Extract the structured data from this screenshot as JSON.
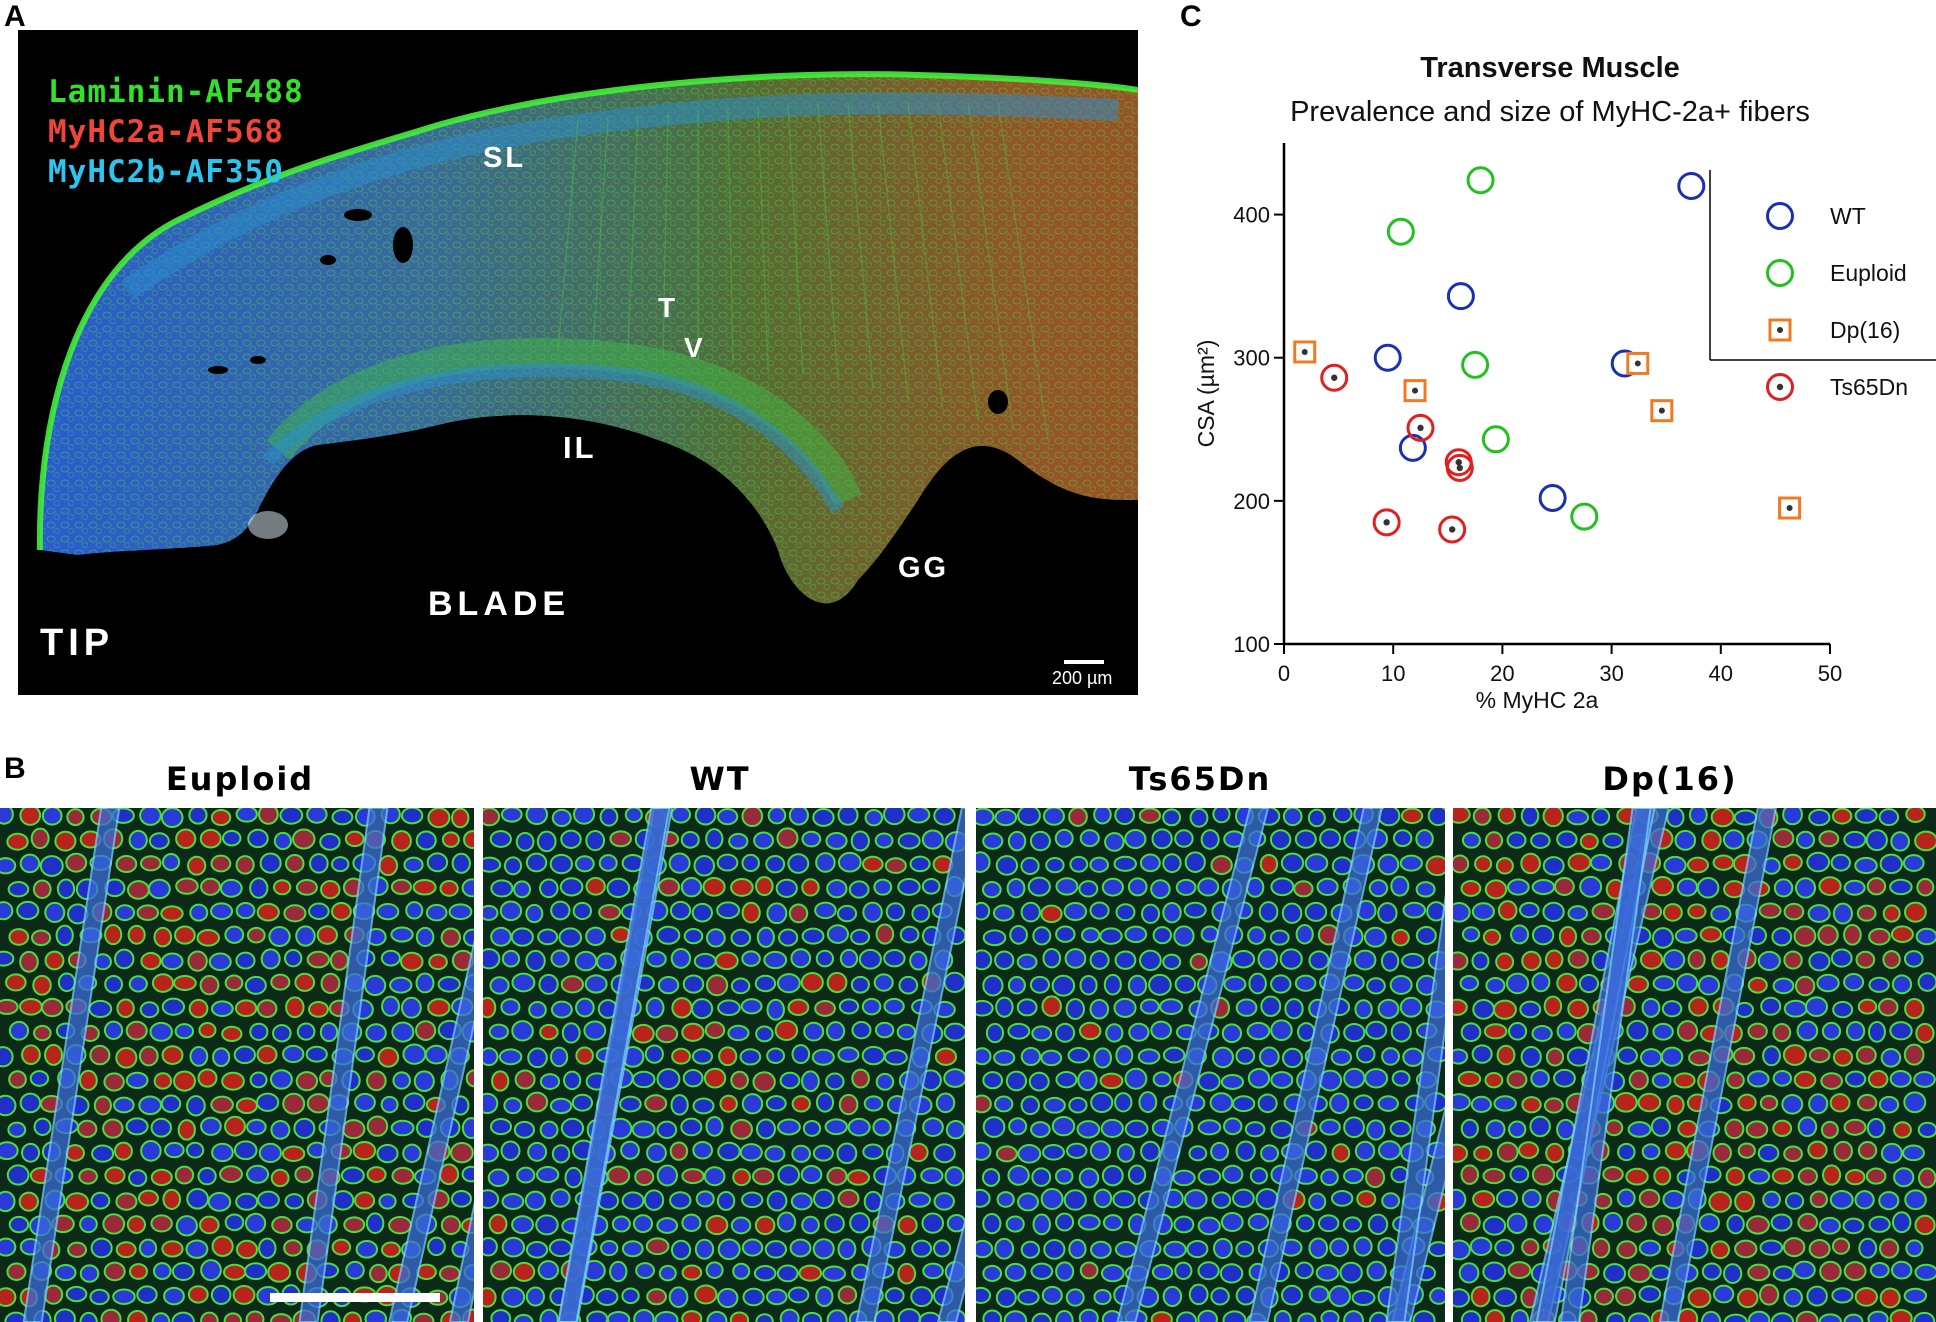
{
  "panels": {
    "a": "A",
    "b": "B",
    "c": "C"
  },
  "panel_a": {
    "stains": [
      {
        "label": "Laminin-AF488",
        "color": "#35e02c"
      },
      {
        "label": "MyHC2a-AF568",
        "color": "#f0463a"
      },
      {
        "label": "MyHC2b-AF350",
        "color": "#2ec4f0"
      }
    ],
    "regions": {
      "sl": "SL",
      "t": "T",
      "v": "V",
      "il": "IL",
      "gg": "GG",
      "blade": "BLADE",
      "tip": "TIP"
    },
    "scale_label": "200 µm"
  },
  "panel_b": {
    "sections": [
      "Euploid",
      "WT",
      "Ts65Dn",
      "Dp(16)"
    ]
  },
  "colors": {
    "wt": "#1b2fb3",
    "euploid": "#22c022",
    "dp16": "#f07a24",
    "ts65dn": "#e01f1f"
  },
  "chart_data": {
    "type": "scatter",
    "title": "Transverse Muscle",
    "subtitle": "Prevalence and size of MyHC-2a+ fibers",
    "xlabel": "% MyHC 2a",
    "ylabel": "CSA (µm²)",
    "xlim": [
      0,
      50
    ],
    "ylim": [
      100,
      450
    ],
    "x_ticks": [
      0,
      10,
      20,
      30,
      40,
      50
    ],
    "y_ticks": [
      100,
      200,
      300,
      400
    ],
    "grid": false,
    "legend_position": "top-right",
    "series": [
      {
        "name": "WT",
        "marker": "circle",
        "color": "#1b2fb3",
        "points": [
          [
            37.3,
            420
          ],
          [
            16.2,
            343
          ],
          [
            9.5,
            300
          ],
          [
            31.2,
            296
          ],
          [
            11.8,
            237
          ],
          [
            24.6,
            202
          ]
        ]
      },
      {
        "name": "Euploid",
        "marker": "circle",
        "color": "#22c022",
        "points": [
          [
            18.0,
            424
          ],
          [
            10.7,
            388
          ],
          [
            17.5,
            295
          ],
          [
            19.4,
            243
          ],
          [
            27.5,
            189
          ]
        ]
      },
      {
        "name": "Dp(16)",
        "marker": "square-dot",
        "color": "#f07a24",
        "points": [
          [
            1.9,
            304
          ],
          [
            12.0,
            277
          ],
          [
            32.4,
            296
          ],
          [
            34.6,
            263
          ],
          [
            46.3,
            195
          ]
        ]
      },
      {
        "name": "Ts65Dn",
        "marker": "circle-dot",
        "color": "#e01f1f",
        "points": [
          [
            4.6,
            286
          ],
          [
            12.5,
            251
          ],
          [
            16.0,
            227
          ],
          [
            16.1,
            223
          ],
          [
            9.4,
            185
          ],
          [
            15.4,
            180
          ]
        ]
      }
    ]
  }
}
